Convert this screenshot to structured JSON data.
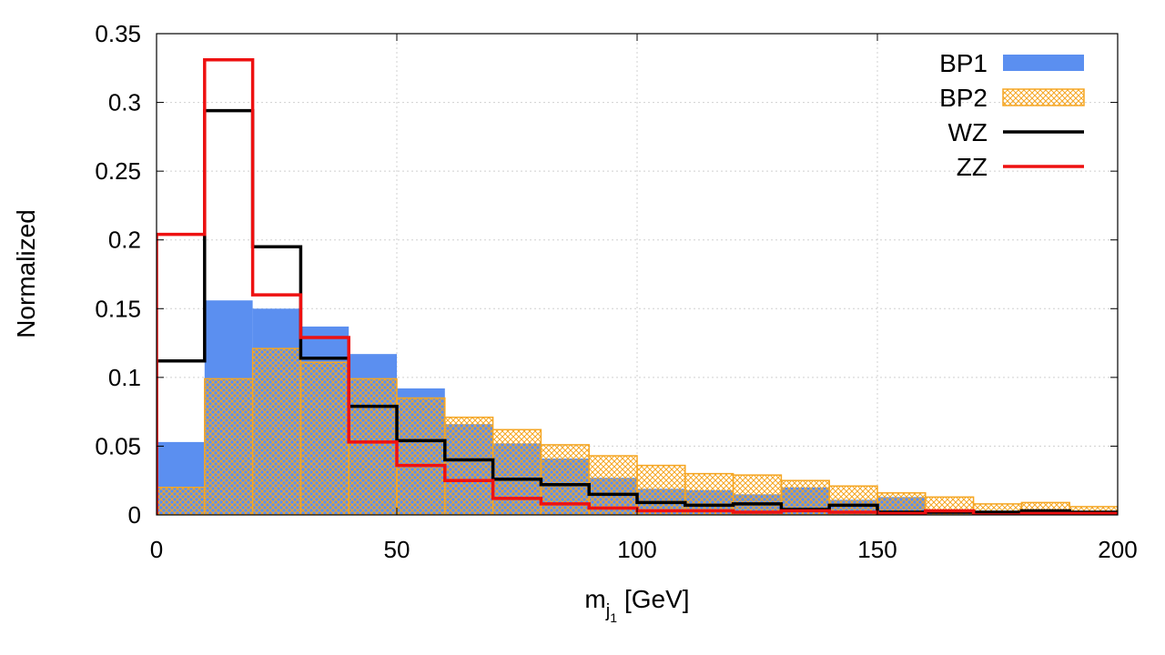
{
  "chart_data": {
    "type": "histogram",
    "xlabel_main": "m",
    "xlabel_sub": "j",
    "xlabel_subsub": "1",
    "xlabel_unit": "[GeV]",
    "ylabel": "Normalized",
    "xlim": [
      0,
      200
    ],
    "ylim": [
      0,
      0.35
    ],
    "grid": true,
    "legend_position": "top-right",
    "bin_edges": [
      0,
      10,
      20,
      30,
      40,
      50,
      60,
      70,
      80,
      90,
      100,
      110,
      120,
      130,
      140,
      150,
      160,
      170,
      180,
      190,
      200
    ],
    "x_ticks": [
      0,
      50,
      100,
      150,
      200
    ],
    "x_tick_labels": [
      "0",
      "50",
      "100",
      "150",
      "200"
    ],
    "y_ticks": [
      0,
      0.05,
      0.1,
      0.15,
      0.2,
      0.25,
      0.3,
      0.35
    ],
    "y_tick_labels": [
      "0",
      "0.05",
      "0.1",
      "0.15",
      "0.2",
      "0.25",
      "0.3",
      "0.35"
    ],
    "series": [
      {
        "name": "BP1",
        "style": "filled",
        "color": "#5b8ff0",
        "values": [
          0.053,
          0.156,
          0.15,
          0.137,
          0.117,
          0.092,
          0.066,
          0.052,
          0.041,
          0.027,
          0.019,
          0.018,
          0.015,
          0.02,
          0.011,
          0.013,
          0.003,
          0.002,
          0.003,
          0.001
        ]
      },
      {
        "name": "BP2",
        "style": "hatched",
        "color": "#f5a623",
        "values": [
          0.02,
          0.099,
          0.121,
          0.111,
          0.099,
          0.085,
          0.071,
          0.062,
          0.051,
          0.043,
          0.036,
          0.03,
          0.029,
          0.025,
          0.021,
          0.016,
          0.013,
          0.008,
          0.009,
          0.006
        ]
      },
      {
        "name": "WZ",
        "style": "step",
        "color": "#000000",
        "values": [
          0.112,
          0.294,
          0.195,
          0.114,
          0.079,
          0.054,
          0.04,
          0.026,
          0.022,
          0.015,
          0.009,
          0.007,
          0.008,
          0.004,
          0.007,
          0.002,
          0.002,
          0.002,
          0.003,
          0.002
        ]
      },
      {
        "name": "ZZ",
        "style": "step",
        "color": "#ee1111",
        "values": [
          0.204,
          0.331,
          0.16,
          0.129,
          0.053,
          0.036,
          0.025,
          0.012,
          0.008,
          0.005,
          0.003,
          0.003,
          0.002,
          0.003,
          0.002,
          0.001,
          0.003,
          0.0,
          0.001,
          0.001
        ]
      }
    ]
  }
}
